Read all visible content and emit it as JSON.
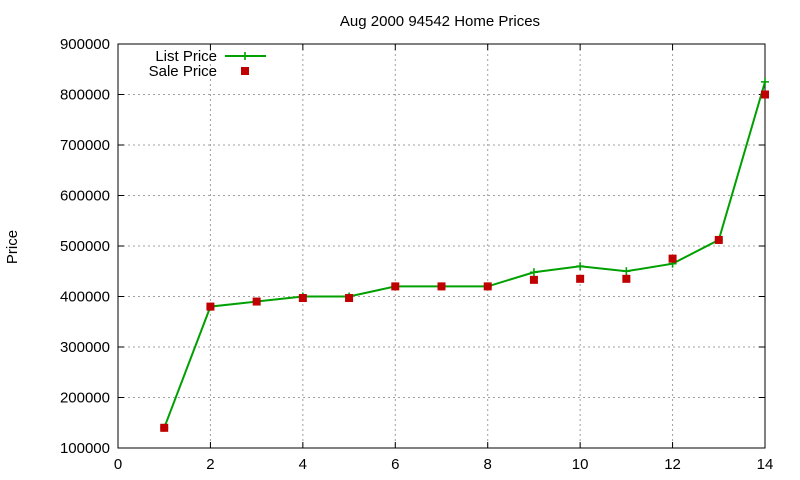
{
  "chart_data": {
    "type": "line",
    "title": "Aug 2000 94542 Home Prices",
    "xlabel": "",
    "ylabel": "Price",
    "xlim": [
      0,
      14
    ],
    "ylim": [
      100000,
      900000
    ],
    "xticks": [
      0,
      2,
      4,
      6,
      8,
      10,
      12,
      14
    ],
    "yticks": [
      100000,
      200000,
      300000,
      400000,
      500000,
      600000,
      700000,
      800000,
      900000
    ],
    "grid": true,
    "legend_position": "top-left",
    "series": [
      {
        "name": "List Price",
        "style": "line with plus markers",
        "color": "#00a000",
        "x": [
          1,
          2,
          3,
          4,
          5,
          6,
          7,
          8,
          9,
          10,
          11,
          12,
          13,
          14
        ],
        "y": [
          140000,
          380000,
          390000,
          400000,
          400000,
          420000,
          420000,
          420000,
          448000,
          460000,
          450000,
          465000,
          512000,
          825000
        ]
      },
      {
        "name": "Sale Price",
        "style": "square markers",
        "color": "#c00000",
        "x": [
          1,
          2,
          3,
          4,
          5,
          6,
          7,
          8,
          9,
          10,
          11,
          12,
          13,
          14
        ],
        "y": [
          140000,
          380000,
          390000,
          397000,
          397000,
          420000,
          420000,
          420000,
          433000,
          435000,
          435000,
          475000,
          512000,
          800000
        ]
      }
    ]
  }
}
